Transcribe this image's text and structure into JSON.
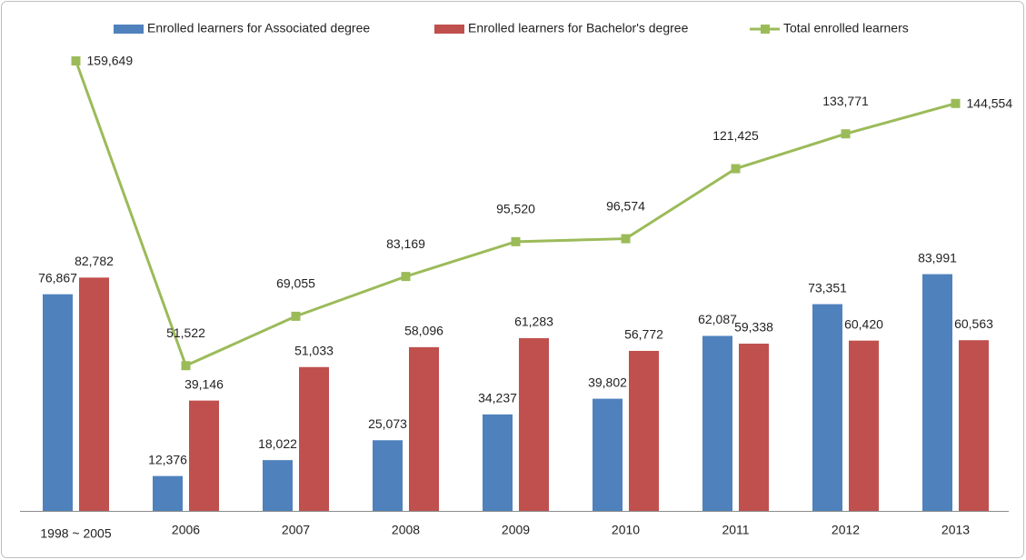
{
  "chart_data": {
    "type": "bar",
    "categories": [
      "1998 ~ 2005",
      "2006",
      "2007",
      "2008",
      "2009",
      "2010",
      "2011",
      "2012",
      "2013"
    ],
    "series": [
      {
        "name": "Enrolled learners for Associated degree",
        "color": "#4f81bd",
        "type": "bar",
        "values": [
          76867,
          12376,
          18022,
          25073,
          34237,
          39802,
          62087,
          73351,
          83991
        ],
        "value_labels": [
          "76,867",
          "12,376",
          "18,022",
          "25,073",
          "34,237",
          "39,802",
          "62,087",
          "73,351",
          "83,991"
        ]
      },
      {
        "name": "Enrolled learners for Bachelor's degree",
        "color": "#c0504d",
        "type": "bar",
        "values": [
          82782,
          39146,
          51033,
          58096,
          61283,
          56772,
          59338,
          60420,
          60563
        ],
        "value_labels": [
          "82,782",
          "39,146",
          "51,033",
          "58,096",
          "61,283",
          "56,772",
          "59,338",
          "60,420",
          "60,563"
        ]
      },
      {
        "name": "Total enrolled learners",
        "color": "#9bbb59",
        "type": "line",
        "values": [
          159649,
          51522,
          69055,
          83169,
          95520,
          96574,
          121425,
          133771,
          144554
        ],
        "value_labels": [
          "159,649",
          "51,522",
          "69,055",
          "83,169",
          "95,520",
          "96,574",
          "121,425",
          "133,771",
          "144,554"
        ]
      }
    ]
  }
}
